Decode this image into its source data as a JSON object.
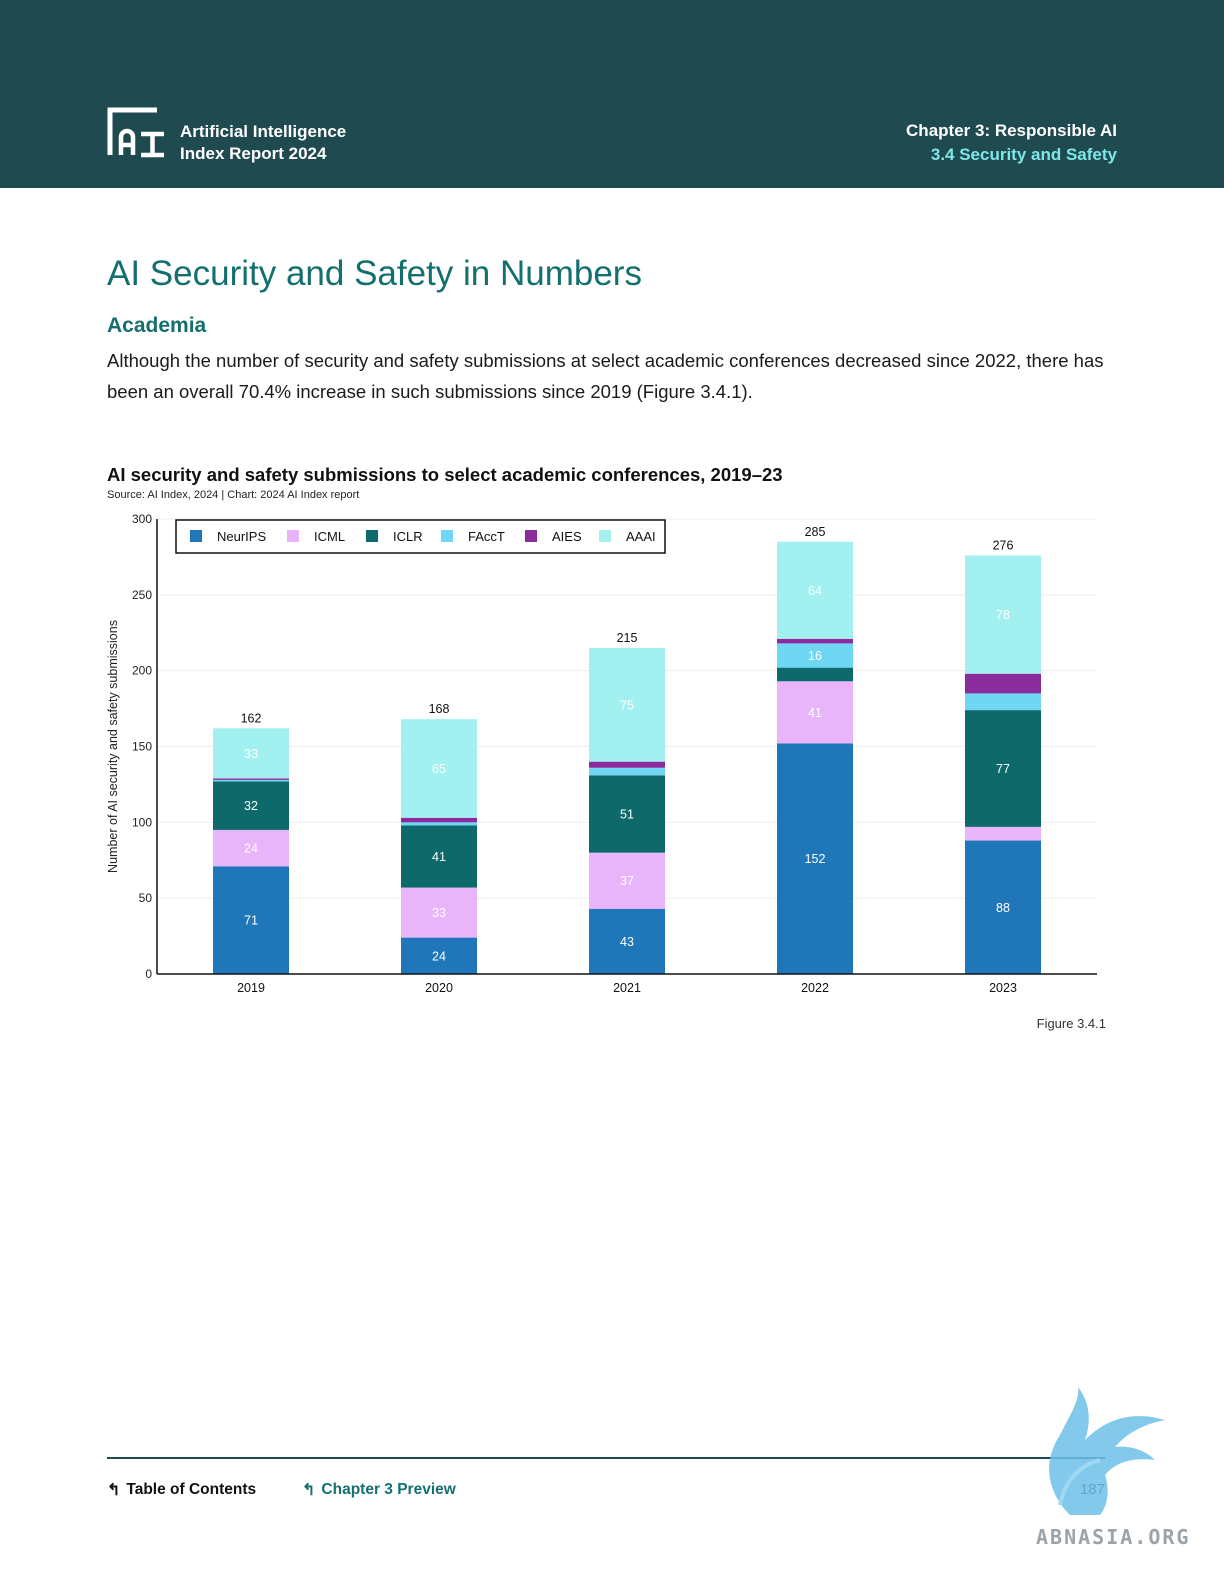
{
  "header": {
    "brand_line1": "Artificial Intelligence",
    "brand_line2": "Index Report 2024",
    "chapter": "Chapter 3: Responsible AI",
    "section": "3.4 Security and Safety"
  },
  "page_title": "AI Security and Safety in Numbers",
  "section_title": "Academia",
  "body_text": "Although the number of security and safety submissions at select academic conferences decreased since 2022, there has been an overall 70.4% increase in such submissions since 2019 (Figure 3.4.1).",
  "chart_data": {
    "type": "bar",
    "stacked": true,
    "title": "AI security and safety submissions to select academic conferences, 2019–23",
    "source": "Source: AI Index, 2024 | Chart: 2024 AI Index report",
    "xlabel": "",
    "ylabel": "Number of AI security and safety submissions",
    "ylim": [
      0,
      300
    ],
    "yticks": [
      0,
      50,
      100,
      150,
      200,
      250,
      300
    ],
    "grid": true,
    "legend_position": "top-left",
    "categories": [
      "2019",
      "2020",
      "2021",
      "2022",
      "2023"
    ],
    "totals": [
      162,
      168,
      215,
      285,
      276
    ],
    "series": [
      {
        "name": "NeurIPS",
        "color": "#1f77b9",
        "values": [
          71,
          24,
          43,
          152,
          88
        ],
        "labels": [
          "71",
          "24",
          "43",
          "152",
          "88"
        ],
        "label_color": "#ffffff"
      },
      {
        "name": "ICML",
        "color": "#e8b4fa",
        "values": [
          24,
          33,
          37,
          41,
          9
        ],
        "labels": [
          "24",
          "33",
          "37",
          "41",
          ""
        ],
        "label_color": "#ffffff"
      },
      {
        "name": "ICLR",
        "color": "#0e6a6a",
        "values": [
          32,
          41,
          51,
          9,
          77
        ],
        "labels": [
          "32",
          "41",
          "51",
          "",
          "77"
        ],
        "label_color": "#ffffff"
      },
      {
        "name": "FAccT",
        "color": "#6fd6f4",
        "values": [
          1,
          2,
          5,
          16,
          11
        ],
        "labels": [
          "",
          "",
          "",
          "16",
          ""
        ],
        "label_color": "#ffffff"
      },
      {
        "name": "AIES",
        "color": "#8a2c9c",
        "values": [
          1,
          3,
          4,
          3,
          13
        ],
        "labels": [
          "",
          "",
          "",
          "",
          ""
        ],
        "label_color": "#ffffff"
      },
      {
        "name": "AAAI",
        "color": "#a3f0f0",
        "values": [
          33,
          65,
          75,
          64,
          78
        ],
        "labels": [
          "33",
          "65",
          "75",
          "64",
          "78"
        ],
        "label_color": "#ffffff"
      }
    ]
  },
  "figure_label": "Figure 3.4.1",
  "footer": {
    "toc": "Table of Contents",
    "preview": "Chapter 3 Preview",
    "page_number": "187"
  },
  "watermark": "ABNASIA.ORG",
  "colors": {
    "header_bg": "#1e4a50",
    "accent": "#14706f",
    "section_accent": "#7fe6e8"
  }
}
